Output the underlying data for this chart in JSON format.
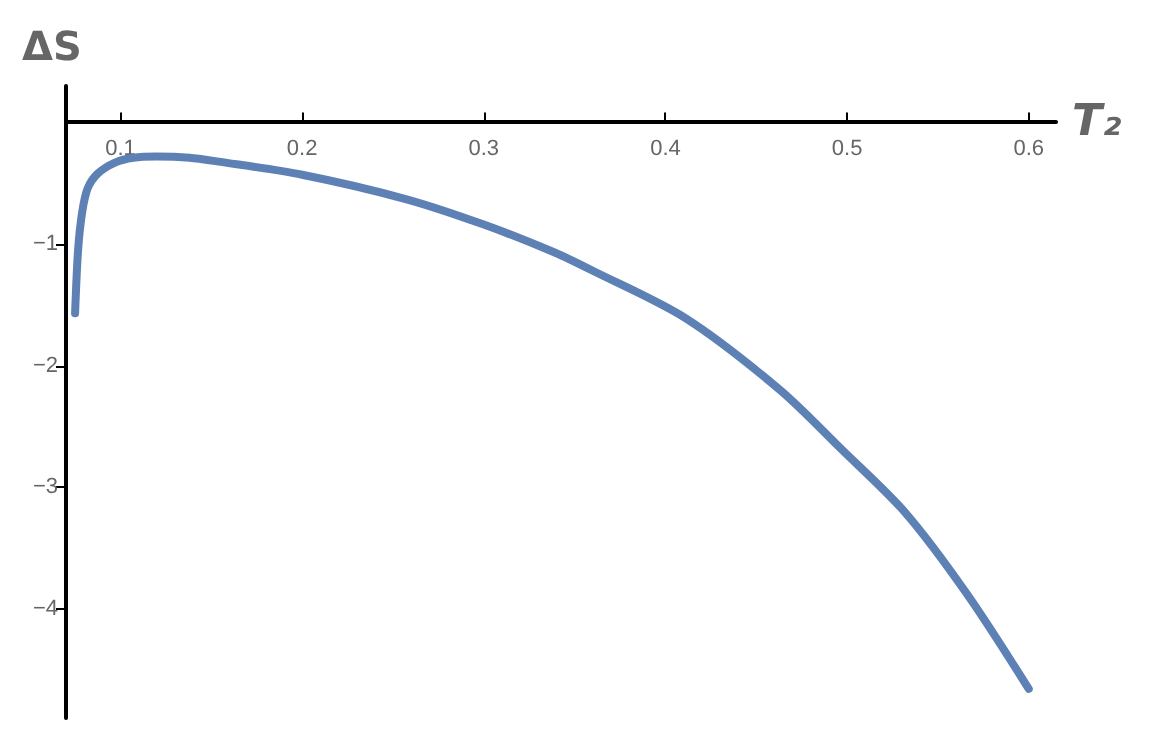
{
  "chart_data": {
    "type": "line",
    "xlabel": "T₂",
    "ylabel": "ΔS",
    "xlim": [
      0.07,
      0.615
    ],
    "ylim": [
      -4.9,
      0.3
    ],
    "xticks": [
      0.1,
      0.2,
      0.3,
      0.4,
      0.5,
      0.6
    ],
    "yticks": [
      -4,
      -3,
      -2,
      -1
    ],
    "grid": false,
    "marker": "none",
    "line_style": "solid",
    "series": [
      {
        "color": "#5e81b5",
        "x": [
          0.075,
          0.0767,
          0.079,
          0.082,
          0.0875,
          0.097,
          0.107,
          0.12,
          0.138,
          0.153,
          0.2,
          0.257,
          0.3,
          0.339,
          0.36,
          0.411,
          0.463,
          0.497,
          0.532,
          0.566,
          0.6
        ],
        "values": [
          -1.57,
          -1.04,
          -0.73,
          -0.54,
          -0.42,
          -0.33,
          -0.29,
          -0.28,
          -0.29,
          -0.32,
          -0.43,
          -0.63,
          -0.84,
          -1.07,
          -1.22,
          -1.61,
          -2.2,
          -2.69,
          -3.21,
          -3.88,
          -4.66
        ]
      }
    ]
  }
}
